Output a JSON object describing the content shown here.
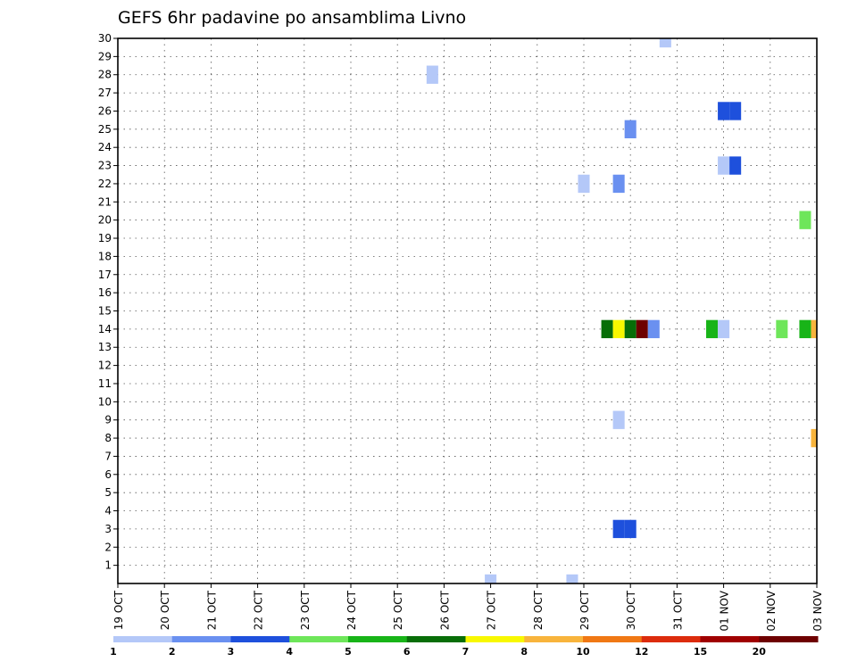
{
  "chart_data": {
    "type": "heatmap",
    "title": "GEFS 6hr padavine po ansamblima Livno",
    "x_tick_labels": [
      "19 OCT",
      "20 OCT",
      "21 OCT",
      "22 OCT",
      "23 OCT",
      "24 OCT",
      "25 OCT",
      "26 OCT",
      "27 OCT",
      "28 OCT",
      "29 OCT",
      "30 OCT",
      "31 OCT",
      "01 NOV",
      "02 NOV",
      "03 NOV"
    ],
    "y_tick_labels": [
      "1",
      "2",
      "3",
      "4",
      "5",
      "6",
      "7",
      "8",
      "9",
      "10",
      "11",
      "12",
      "13",
      "14",
      "15",
      "16",
      "17",
      "18",
      "19",
      "20",
      "21",
      "22",
      "23",
      "24",
      "25",
      "26",
      "27",
      "28",
      "29",
      "30"
    ],
    "xlim_days": [
      0,
      15
    ],
    "ylim": [
      0,
      30
    ],
    "grid": true,
    "colorbar": {
      "labels": [
        "1",
        "2",
        "3",
        "4",
        "5",
        "6",
        "7",
        "8",
        "10",
        "12",
        "15",
        "20"
      ],
      "colors": [
        "#b4c8f8",
        "#6a90f0",
        "#1e50dc",
        "#6ee65a",
        "#18b418",
        "#086e08",
        "#f8f800",
        "#f8b43c",
        "#f07814",
        "#dc2c0c",
        "#a00000",
        "#6e0000"
      ]
    },
    "cells": [
      {
        "x": 11.75,
        "y": 30,
        "value": 1
      },
      {
        "x": 6.75,
        "y": 28,
        "value": 1
      },
      {
        "x": 13,
        "y": 26,
        "value": 3
      },
      {
        "x": 13.25,
        "y": 26,
        "value": 3
      },
      {
        "x": 11,
        "y": 25,
        "value": 2
      },
      {
        "x": 10,
        "y": 22,
        "value": 1
      },
      {
        "x": 10.75,
        "y": 22,
        "value": 2
      },
      {
        "x": 13,
        "y": 23,
        "value": 1
      },
      {
        "x": 13.25,
        "y": 23,
        "value": 3
      },
      {
        "x": 14.75,
        "y": 20,
        "value": 4
      },
      {
        "x": 10.5,
        "y": 14,
        "value": 6
      },
      {
        "x": 10.75,
        "y": 14,
        "value": 7
      },
      {
        "x": 11,
        "y": 14,
        "value": 6
      },
      {
        "x": 11.25,
        "y": 14,
        "value": 20
      },
      {
        "x": 11.5,
        "y": 14,
        "value": 2
      },
      {
        "x": 12.75,
        "y": 14,
        "value": 5
      },
      {
        "x": 13,
        "y": 14,
        "value": 1
      },
      {
        "x": 14.25,
        "y": 14,
        "value": 4
      },
      {
        "x": 14.75,
        "y": 14,
        "value": 5
      },
      {
        "x": 15,
        "y": 14,
        "value": 8
      },
      {
        "x": 10.75,
        "y": 9,
        "value": 1
      },
      {
        "x": 15,
        "y": 8,
        "value": 8
      },
      {
        "x": 10.75,
        "y": 3,
        "value": 3
      },
      {
        "x": 11,
        "y": 3,
        "value": 3
      },
      {
        "x": 8,
        "y": 0,
        "value": 1
      },
      {
        "x": 9.75,
        "y": 0,
        "value": 1
      }
    ]
  }
}
